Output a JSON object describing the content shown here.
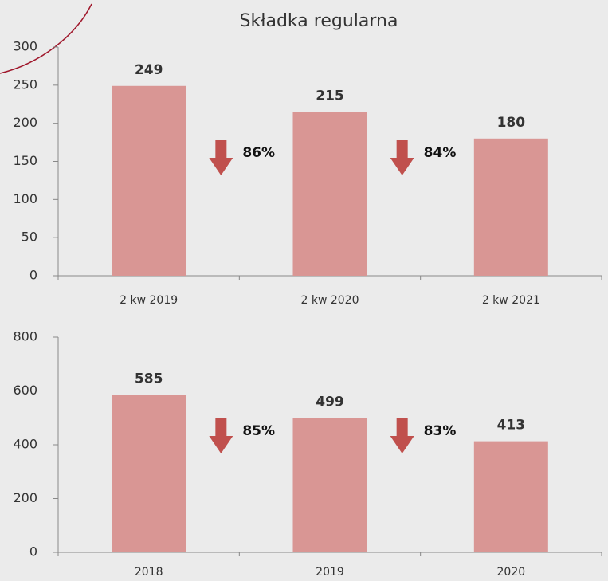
{
  "chart_data": [
    {
      "type": "bar",
      "title": "Składka regularna",
      "categories": [
        "2 kw 2019",
        "2 kw 2020",
        "2 kw 2021"
      ],
      "values": [
        249,
        215,
        180
      ],
      "color": "#d99694",
      "ylim": [
        0,
        300
      ],
      "yticks": [
        0,
        50,
        100,
        150,
        200,
        250,
        300
      ],
      "annotations": [
        "86%",
        "84%"
      ],
      "annotation_color": "#c0504d"
    },
    {
      "type": "bar",
      "categories": [
        "2018",
        "2019",
        "2020"
      ],
      "values": [
        585,
        499,
        413
      ],
      "color": "#d99694",
      "ylim": [
        0,
        800
      ],
      "yticks": [
        0,
        200,
        400,
        600,
        800
      ],
      "annotations": [
        "85%",
        "83%"
      ],
      "annotation_color": "#c0504d"
    }
  ]
}
